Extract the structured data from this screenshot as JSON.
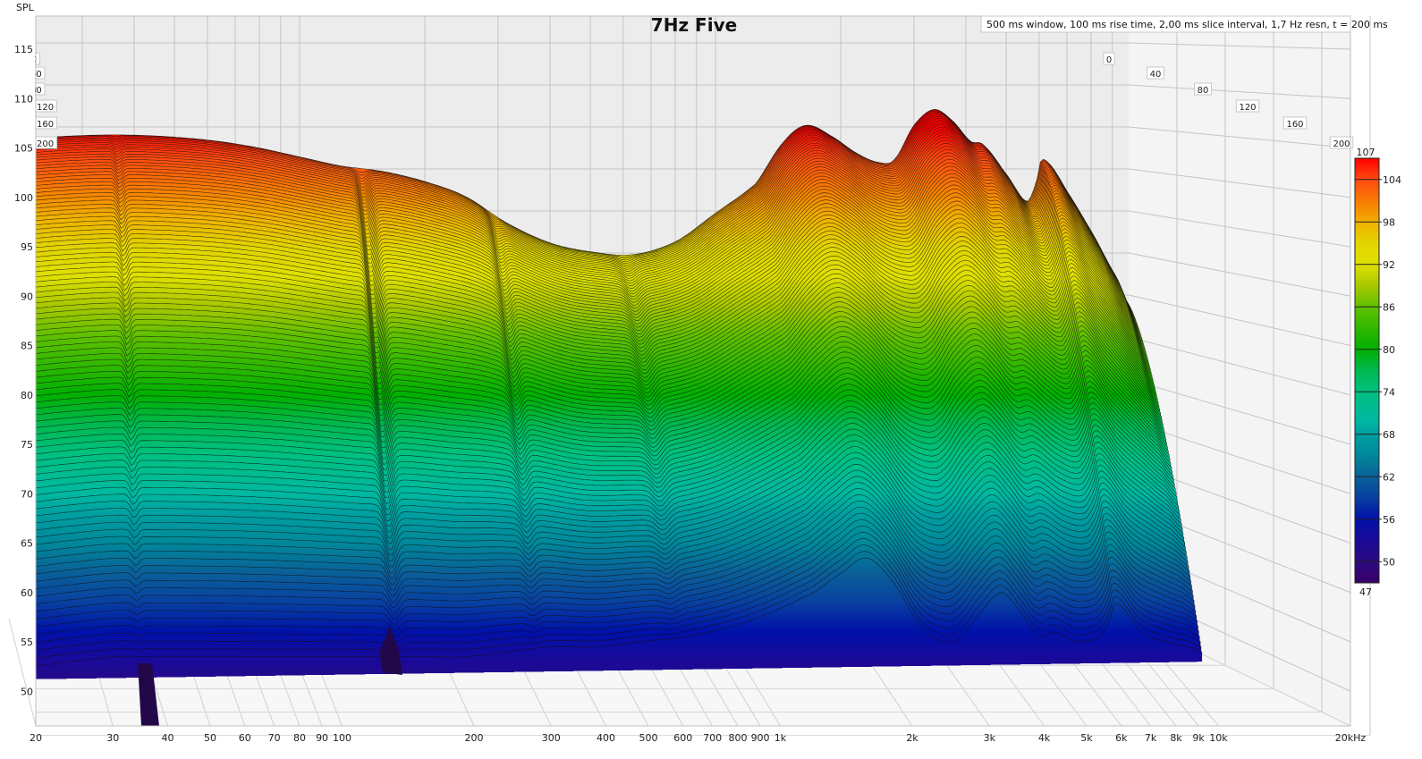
{
  "title": "7Hz Five",
  "info": "500 ms window, 100 ms rise time, 2,00 ms slice interval, 1,7 Hz resn, t = 200 ms",
  "chart_data": {
    "type": "waterfall",
    "title": "7Hz Five",
    "ylabel": "SPL",
    "x_scale": "log",
    "xlim": [
      20,
      20000
    ],
    "ylim": [
      46.5,
      118
    ],
    "grid": true,
    "x_ticks": [
      {
        "value": 20,
        "label": "20"
      },
      {
        "value": 30,
        "label": "30"
      },
      {
        "value": 40,
        "label": "40"
      },
      {
        "value": 50,
        "label": "50"
      },
      {
        "value": 60,
        "label": "60"
      },
      {
        "value": 70,
        "label": "70"
      },
      {
        "value": 80,
        "label": "80"
      },
      {
        "value": 90,
        "label": "90"
      },
      {
        "value": 100,
        "label": "100"
      },
      {
        "value": 200,
        "label": "200"
      },
      {
        "value": 300,
        "label": "300"
      },
      {
        "value": 400,
        "label": "400"
      },
      {
        "value": 500,
        "label": "500"
      },
      {
        "value": 600,
        "label": "600"
      },
      {
        "value": 700,
        "label": "700"
      },
      {
        "value": 800,
        "label": "800"
      },
      {
        "value": 900,
        "label": "900"
      },
      {
        "value": 1000,
        "label": "1k"
      },
      {
        "value": 2000,
        "label": "2k"
      },
      {
        "value": 3000,
        "label": "3k"
      },
      {
        "value": 4000,
        "label": "4k"
      },
      {
        "value": 5000,
        "label": "5k"
      },
      {
        "value": 6000,
        "label": "6k"
      },
      {
        "value": 7000,
        "label": "7k"
      },
      {
        "value": 8000,
        "label": "8k"
      },
      {
        "value": 9000,
        "label": "9k"
      },
      {
        "value": 10000,
        "label": "10k"
      },
      {
        "value": 20000,
        "label": "20kHz"
      }
    ],
    "y_ticks": [
      50,
      55,
      60,
      65,
      70,
      75,
      80,
      85,
      90,
      95,
      100,
      105,
      110,
      115
    ],
    "time_axis": {
      "unit": "ms",
      "ticks": [
        "0",
        "40",
        "80",
        "120",
        "160",
        "200"
      ]
    },
    "colorbar": {
      "min": 47,
      "max": 107,
      "ticks": [
        50,
        56,
        62,
        68,
        74,
        80,
        86,
        92,
        98,
        104
      ],
      "min_label": "47",
      "max_label": "107",
      "colors": [
        {
          "v": 107,
          "c": "#ff0000"
        },
        {
          "v": 104,
          "c": "#ff4a10"
        },
        {
          "v": 100,
          "c": "#f58a00"
        },
        {
          "v": 98,
          "c": "#f0b000"
        },
        {
          "v": 95,
          "c": "#e2d400"
        },
        {
          "v": 92,
          "c": "#dfe000"
        },
        {
          "v": 89,
          "c": "#a8c800"
        },
        {
          "v": 86,
          "c": "#60c000"
        },
        {
          "v": 80,
          "c": "#00b000"
        },
        {
          "v": 77,
          "c": "#00b850"
        },
        {
          "v": 74,
          "c": "#00c080"
        },
        {
          "v": 70,
          "c": "#00b8a0"
        },
        {
          "v": 68,
          "c": "#00a0a0"
        },
        {
          "v": 65,
          "c": "#00889a"
        },
        {
          "v": 62,
          "c": "#0a6098"
        },
        {
          "v": 59,
          "c": "#0840a0"
        },
        {
          "v": 56,
          "c": "#0010a8"
        },
        {
          "v": 53,
          "c": "#1a0a98"
        },
        {
          "v": 50,
          "c": "#2c0a80"
        },
        {
          "v": 47,
          "c": "#3a0068"
        }
      ]
    },
    "frequency_hz": [
      20,
      25,
      32,
      40,
      50,
      63,
      80,
      100,
      125,
      160,
      200,
      250,
      315,
      400,
      500,
      630,
      800,
      1000,
      1250,
      1450,
      1650,
      1900,
      2200,
      2500,
      2700,
      3000,
      3350,
      3700,
      4100,
      4400,
      5000,
      5600,
      5900,
      6100,
      7000,
      8000,
      9000,
      9600
    ],
    "slices": [
      {
        "time_ms": 0,
        "spl": [
          105.8,
          106.1,
          106.3,
          106.3,
          106.1,
          105.7,
          105.0,
          104.1,
          103.2,
          102.6,
          101.6,
          100.1,
          97.4,
          95.4,
          94.5,
          94.2,
          95.5,
          98.4,
          101.4,
          105.5,
          107.3,
          106.2,
          104.4,
          103.5,
          103.9,
          107.3,
          108.9,
          107.8,
          105.7,
          105.3,
          102.3,
          99.6,
          101.4,
          103.9,
          100.5,
          96.4,
          92.4,
          89.7
        ]
      },
      {
        "time_ms": 200,
        "spl": [
          52.5,
          53,
          53.5,
          53.5,
          53.5,
          53.5,
          53.5,
          53.5,
          53.5,
          53.5,
          53.5,
          54,
          54.5,
          54.5,
          55,
          55.5,
          56.5,
          58,
          60,
          62,
          63.5,
          61,
          56.5,
          55,
          55.5,
          58,
          60,
          58,
          55.5,
          56,
          55,
          55.5,
          57,
          59,
          56,
          55,
          54.5,
          54
        ]
      }
    ]
  }
}
